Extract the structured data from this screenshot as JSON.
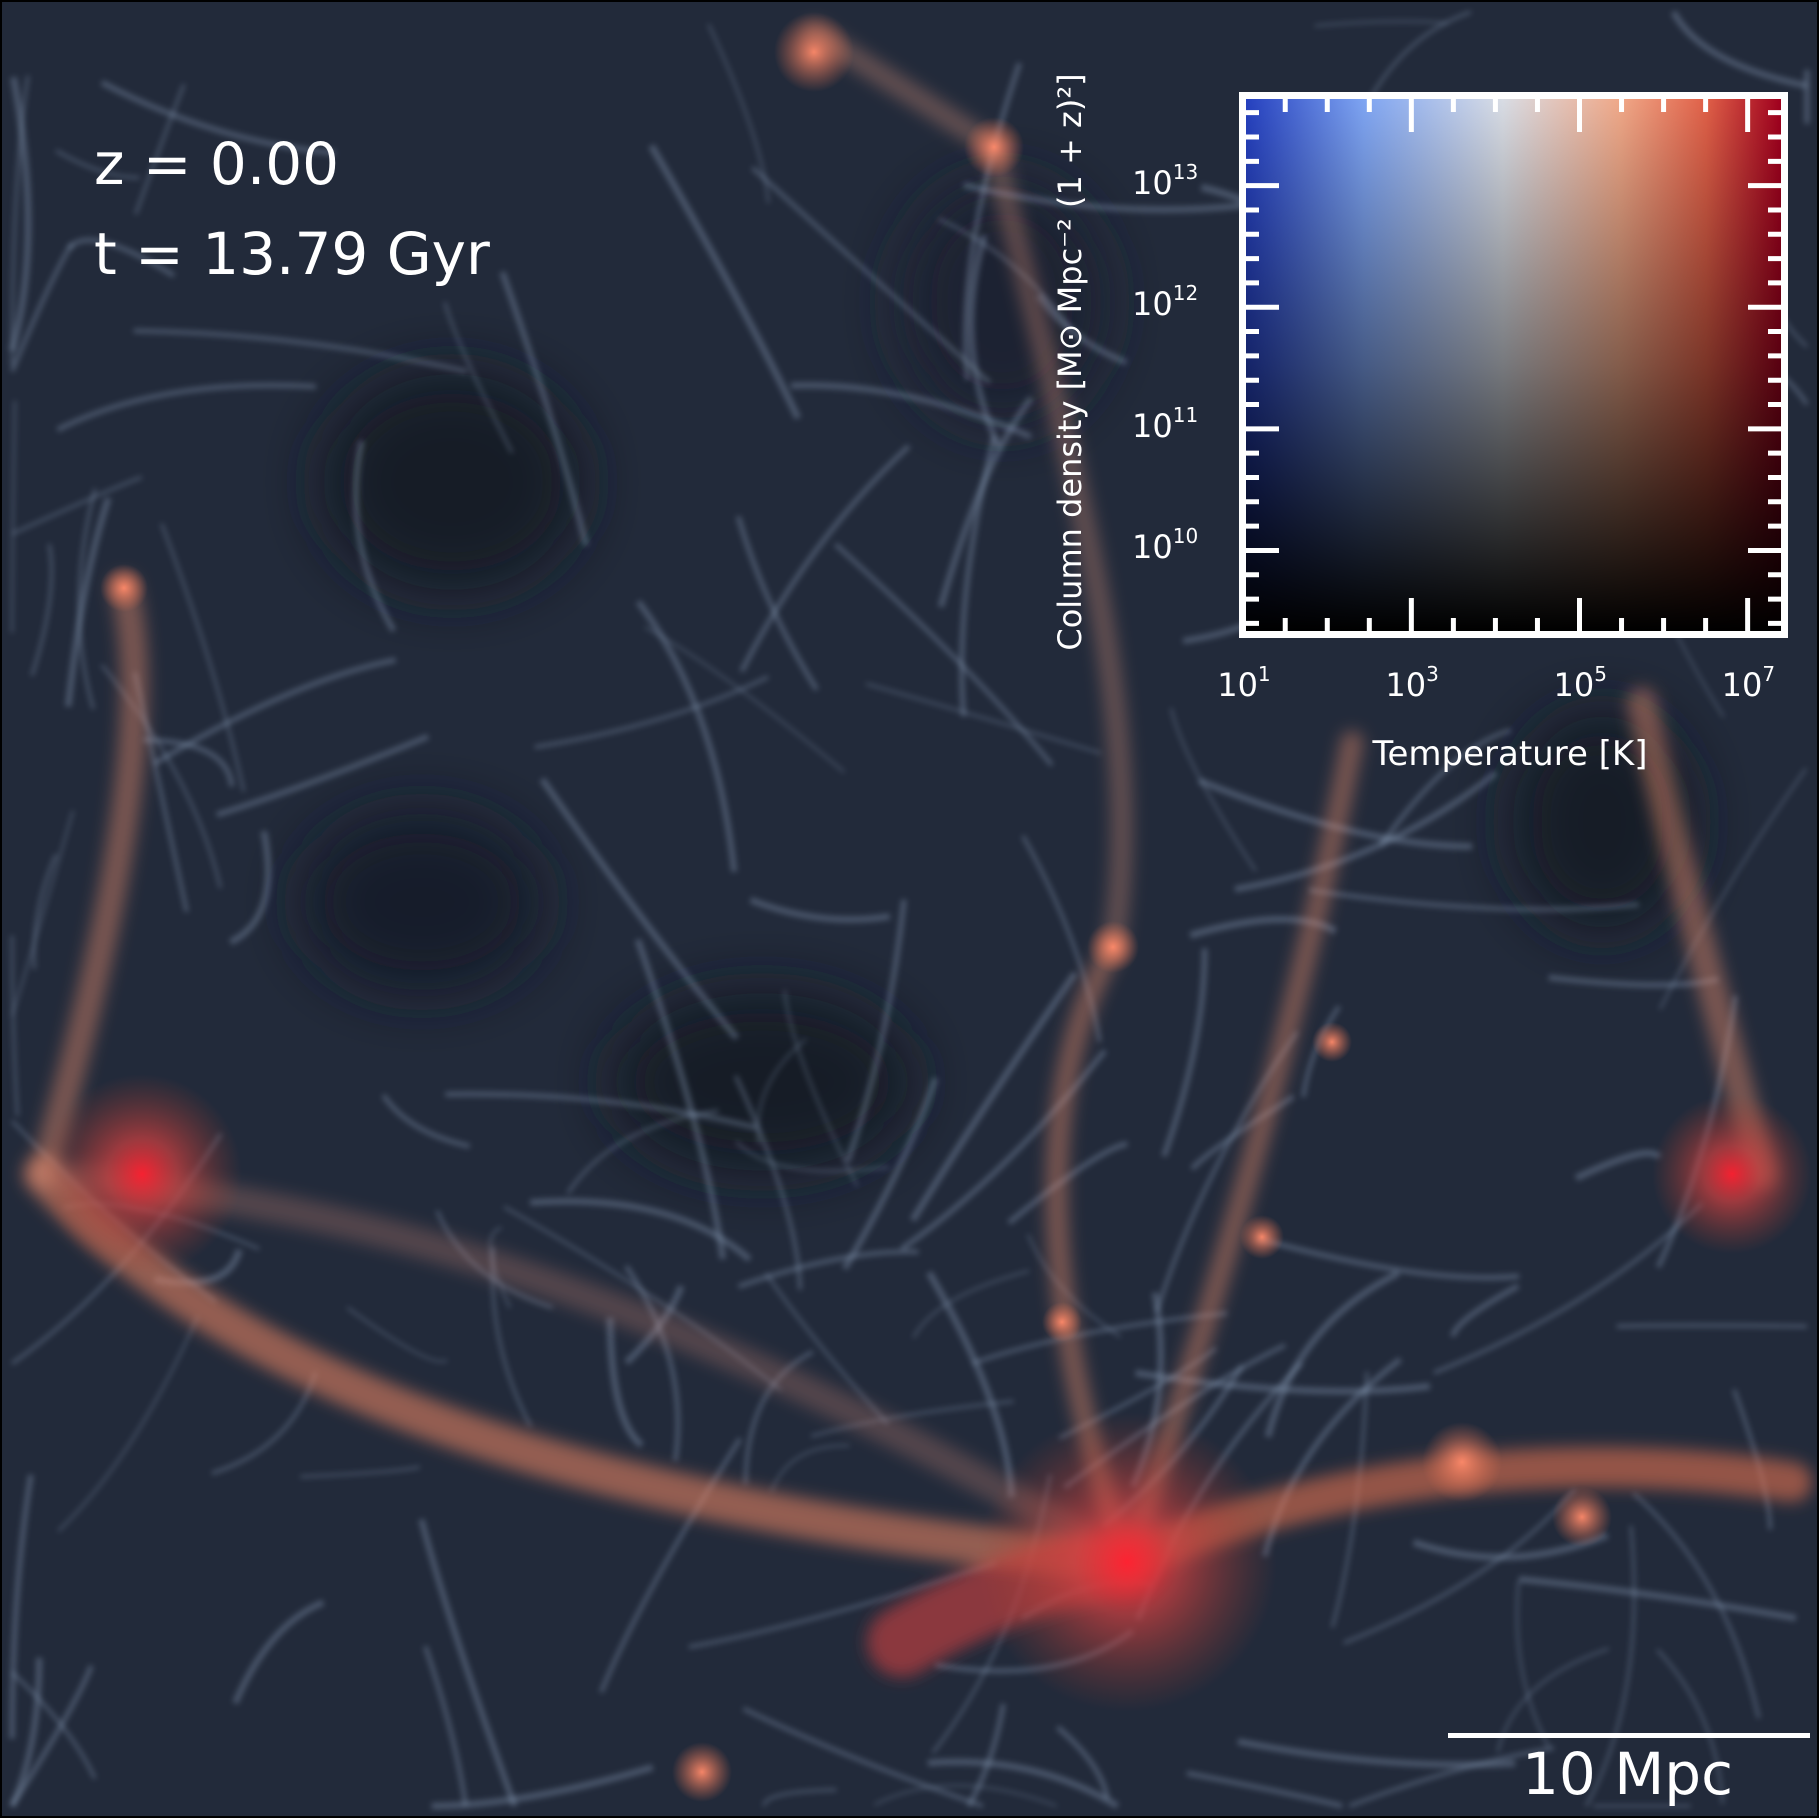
{
  "annotations": {
    "redshift": "z = 0.00",
    "time": "t = 13.79 Gyr",
    "scale_bar_label": "10 Mpc"
  },
  "colorbar": {
    "type": "2d-colormap",
    "xlabel": "Temperature [K]",
    "ylabel": "Column density [M⊙ Mpc⁻² (1 + z)²]",
    "x_scale": "log",
    "y_scale": "log",
    "x_ticks": [
      {
        "base": "10",
        "exp": "1"
      },
      {
        "base": "10",
        "exp": "3"
      },
      {
        "base": "10",
        "exp": "5"
      },
      {
        "base": "10",
        "exp": "7"
      }
    ],
    "y_ticks": [
      {
        "base": "10",
        "exp": "13"
      },
      {
        "base": "10",
        "exp": "12"
      },
      {
        "base": "10",
        "exp": "11"
      },
      {
        "base": "10",
        "exp": "10"
      }
    ],
    "x_log_range": [
      0.95,
      7.48
    ],
    "y_log_range": [
      9.28,
      13.77
    ],
    "colors": {
      "cold": "#2540bf",
      "neutral": "#d8dce4",
      "hot": "#a0001e",
      "low_density": "#000000"
    }
  },
  "image_colors": {
    "background": "#1c2230",
    "filament_cold": "#8fa4c0",
    "filament_hot": "#e8805c",
    "cluster_core": "#e0102a"
  }
}
